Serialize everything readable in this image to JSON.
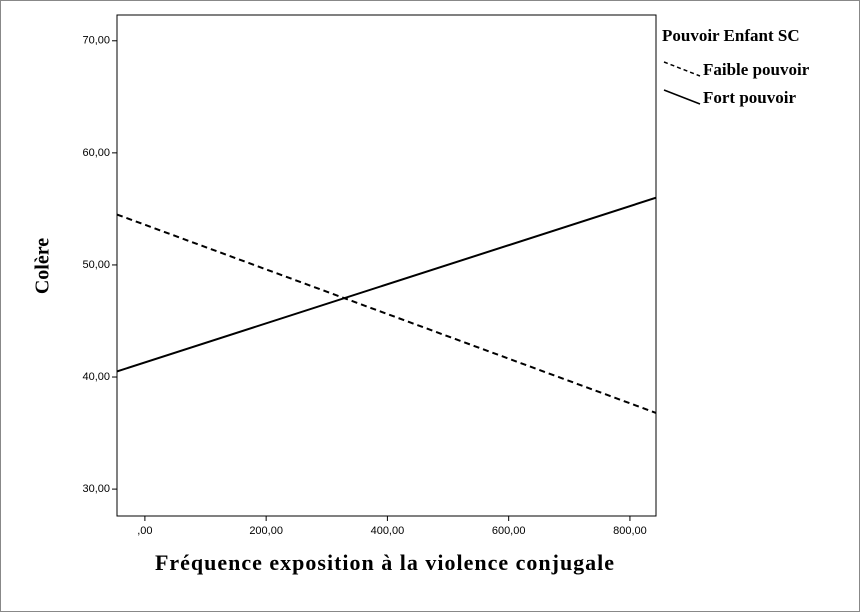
{
  "chart_data": {
    "type": "line",
    "x_label": "Fréquence exposition à la violence conjugale",
    "y_label": "Colère",
    "legend_title": "Pouvoir Enfant SC",
    "x": [
      -46,
      843
    ],
    "series": [
      {
        "name": "Faible pouvoir",
        "color": "#000000",
        "dash": true,
        "values": [
          54.5,
          36.8
        ]
      },
      {
        "name": "Fort pouvoir",
        "color": "#000000",
        "dash": false,
        "values": [
          40.5,
          56.0
        ]
      }
    ],
    "xlim": [
      -46,
      843
    ],
    "xticks": [
      {
        "value": 0,
        "label": ",00"
      },
      {
        "value": 200,
        "label": "200,00"
      },
      {
        "value": 400,
        "label": "400,00"
      },
      {
        "value": 600,
        "label": "600,00"
      },
      {
        "value": 800,
        "label": "800,00"
      }
    ],
    "ylim": [
      27.6,
      72.3
    ],
    "yticks": [
      {
        "value": 30,
        "label": "30,00"
      },
      {
        "value": 40,
        "label": "40,00"
      },
      {
        "value": 50,
        "label": "50,00"
      },
      {
        "value": 60,
        "label": "60,00"
      },
      {
        "value": 70,
        "label": "70,00"
      }
    ],
    "grid": false,
    "legend": "right"
  }
}
